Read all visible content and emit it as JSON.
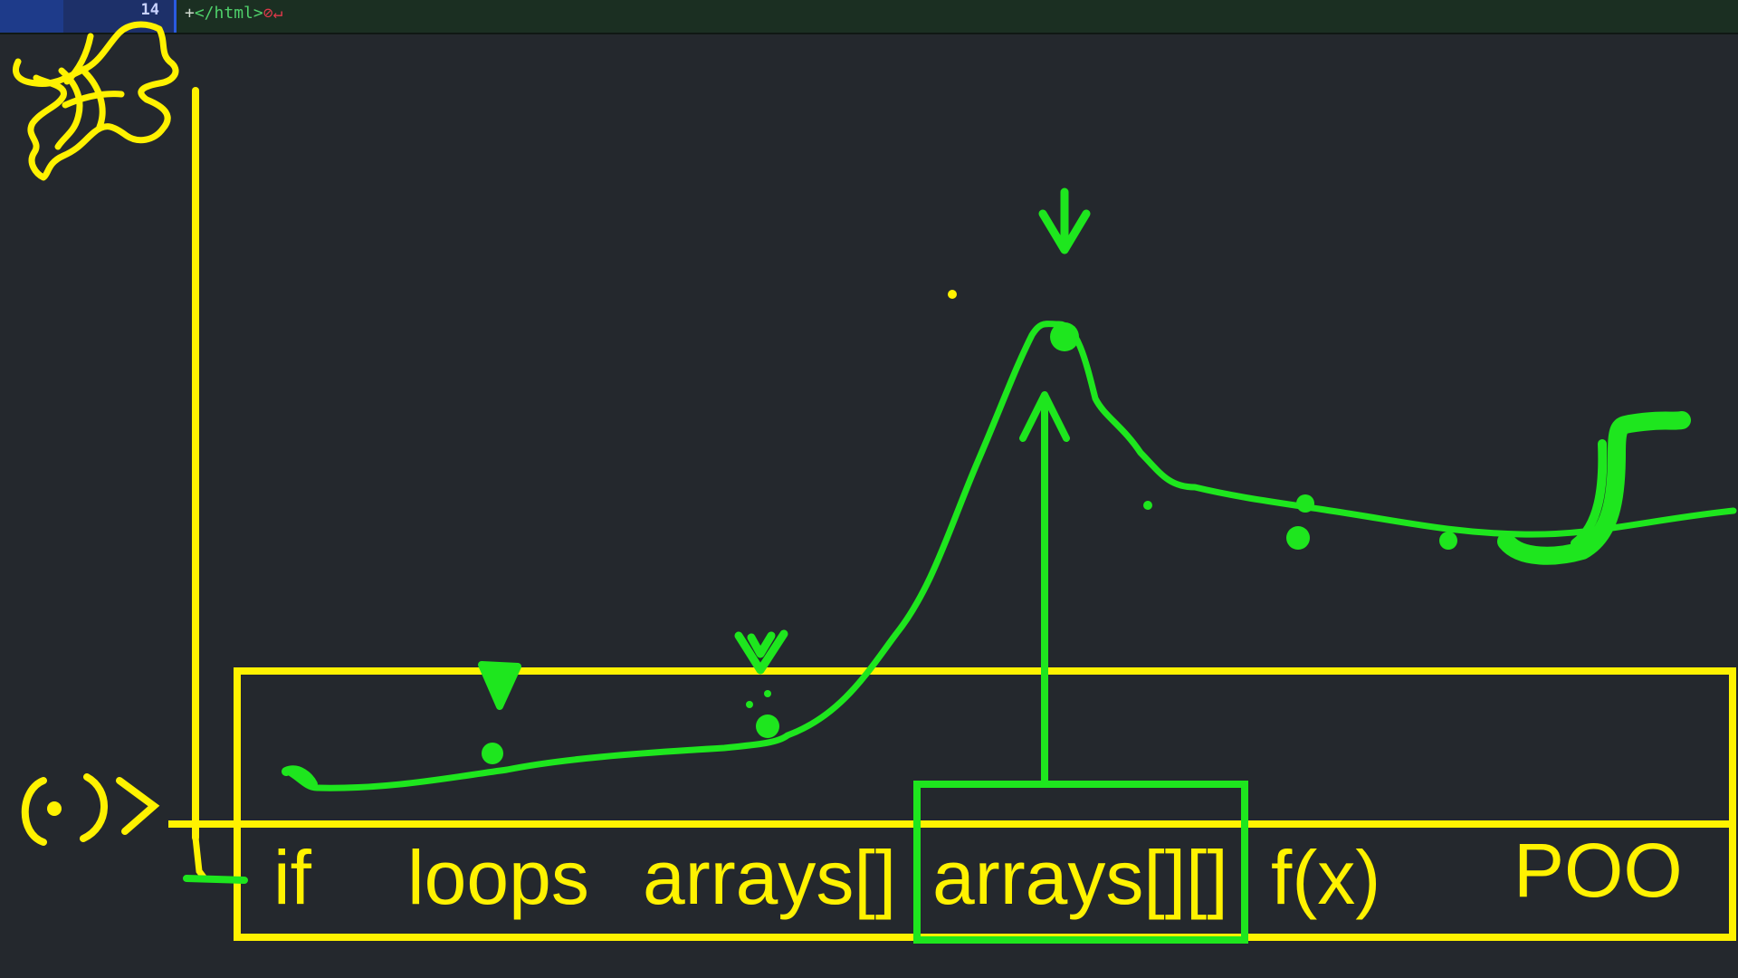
{
  "editor": {
    "line_number": "14",
    "line_prefix": "+",
    "line_code": "</html>",
    "line_marks": "⊘↵"
  },
  "diagram": {
    "topics": [
      "if",
      "loops",
      "arrays[]",
      "arrays[][]",
      "f(x)",
      "POO"
    ],
    "highlighted_topic": "arrays[][]"
  },
  "colors": {
    "background": "#24282d",
    "ink_yellow": "#fff200",
    "ink_green": "#1ee61e",
    "editor_strip": "#1b2f22",
    "gutter": "#1e3b8a"
  }
}
